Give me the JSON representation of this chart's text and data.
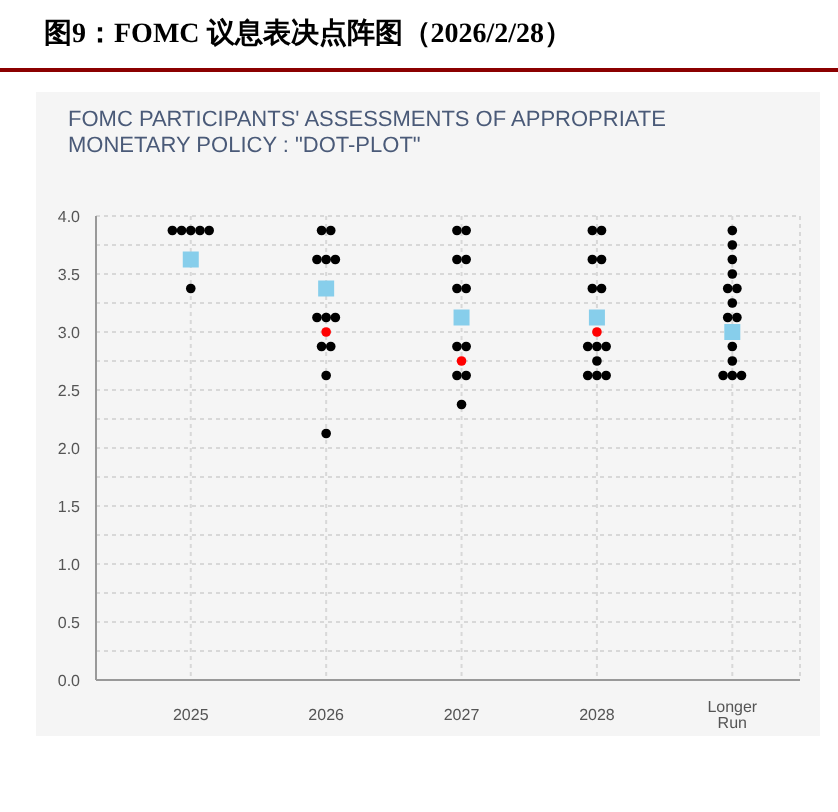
{
  "chart_data": {
    "type": "scatter",
    "title": "图9：FOMC 议息表决点阵图（2026/2/28）",
    "subtitle": "FOMC PARTICIPANTS' ASSESSMENTS OF APPROPRIATE MONETARY POLICY : \"DOT-PLOT\"",
    "categories": [
      "2025",
      "2026",
      "2027",
      "2028",
      "Longer Run"
    ],
    "series": [
      {
        "color": "#000000",
        "marker": "circle",
        "values": [
          3.875,
          3.875,
          3.875,
          3.875,
          3.875
        ]
      },
      {
        "color": "#000000",
        "marker": "circle",
        "values": [
          3.875,
          3.875,
          3.875,
          3.875,
          3.75
        ]
      },
      {
        "color": "#000000",
        "marker": "circle",
        "values": [
          3.875,
          3.625,
          3.625,
          3.625,
          3.625
        ]
      },
      {
        "color": "#000000",
        "marker": "circle",
        "values": [
          3.875,
          3.625,
          3.625,
          3.625,
          3.5
        ]
      },
      {
        "color": "#000000",
        "marker": "circle",
        "values": [
          3.875,
          3.625,
          3.375,
          3.375,
          3.375
        ]
      },
      {
        "color": "#000000",
        "marker": "circle",
        "values": [
          3.375,
          3.125,
          3.375,
          3.375,
          3.375
        ]
      },
      {
        "color": "#000000",
        "marker": "circle",
        "values": [
          null,
          3.125,
          2.875,
          2.875,
          3.25
        ]
      },
      {
        "color": "#000000",
        "marker": "circle",
        "values": [
          null,
          3.125,
          2.875,
          2.875,
          3.125
        ]
      },
      {
        "color": "#000000",
        "marker": "circle",
        "values": [
          null,
          2.875,
          2.625,
          2.875,
          3.125
        ]
      },
      {
        "color": "#000000",
        "marker": "circle",
        "values": [
          null,
          2.875,
          2.625,
          2.75,
          2.875
        ]
      },
      {
        "color": "#000000",
        "marker": "circle",
        "values": [
          null,
          2.625,
          2.375,
          2.625,
          2.75
        ]
      },
      {
        "color": "#000000",
        "marker": "circle",
        "values": [
          null,
          2.125,
          null,
          2.625,
          2.625
        ]
      },
      {
        "color": "#000000",
        "marker": "circle",
        "values": [
          null,
          null,
          null,
          2.625,
          2.625
        ]
      },
      {
        "color": "#000000",
        "marker": "circle",
        "values": [
          null,
          null,
          null,
          null,
          2.625
        ]
      },
      {
        "color": "#ff0000",
        "marker": "circle",
        "values": [
          null,
          3.0,
          2.75,
          3.0,
          null
        ]
      },
      {
        "color": "#87ceeb",
        "marker": "square",
        "values": [
          3.625,
          3.375,
          3.125,
          3.125,
          3.0
        ]
      }
    ],
    "ylim": [
      0,
      4
    ],
    "yticks": [
      {
        "value": 0,
        "label": "0.0"
      },
      {
        "value": 0.25,
        "label": null
      },
      {
        "value": 0.5,
        "label": "0.5"
      },
      {
        "value": 0.75,
        "label": null
      },
      {
        "value": 1,
        "label": "1.0"
      },
      {
        "value": 1.25,
        "label": null
      },
      {
        "value": 1.5,
        "label": "1.5"
      },
      {
        "value": 1.75,
        "label": null
      },
      {
        "value": 2,
        "label": "2.0"
      },
      {
        "value": 2.25,
        "label": null
      },
      {
        "value": 2.5,
        "label": "2.5"
      },
      {
        "value": 2.75,
        "label": null
      },
      {
        "value": 3,
        "label": "3.0"
      },
      {
        "value": 3.25,
        "label": null
      },
      {
        "value": 3.5,
        "label": "3.5"
      },
      {
        "value": 3.75,
        "label": null
      },
      {
        "value": 4,
        "label": "4.0"
      }
    ],
    "grid": true
  }
}
